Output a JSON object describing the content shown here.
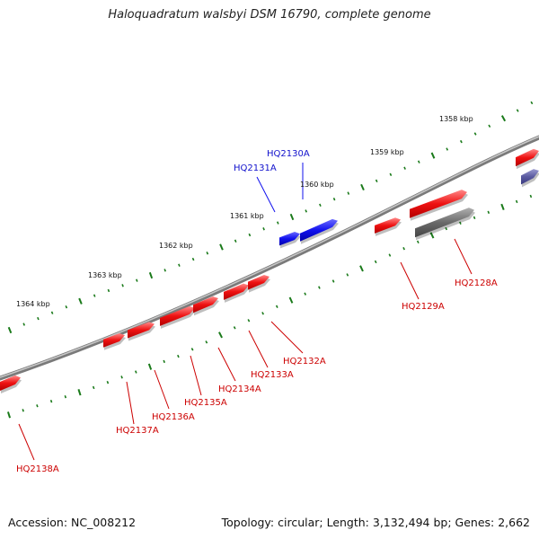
{
  "title": "Haloquadratum walsbyi DSM 16790, complete genome",
  "accession": "Accession: NC_008212",
  "summary": "Topology: circular; Length: 3,132,494 bp; Genes: 2,662",
  "colors": {
    "forward_gene": "#ee1111",
    "other_gene": "#1111ee",
    "pseudo_gene": "#666666",
    "faded_gene": "#5a5aa0",
    "tick": "#1a7a1a",
    "backbone": "#888888"
  },
  "kbp_labels": [
    "1358 kbp",
    "1359 kbp",
    "1360 kbp",
    "1361 kbp",
    "1362 kbp",
    "1363 kbp",
    "1364 kbp"
  ],
  "genes": {
    "blue": [
      "HQ2130A",
      "HQ2131A"
    ],
    "red": [
      "HQ2128A",
      "HQ2129A",
      "HQ2132A",
      "HQ2133A",
      "HQ2134A",
      "HQ2135A",
      "HQ2136A",
      "HQ2137A",
      "HQ2138A"
    ]
  }
}
